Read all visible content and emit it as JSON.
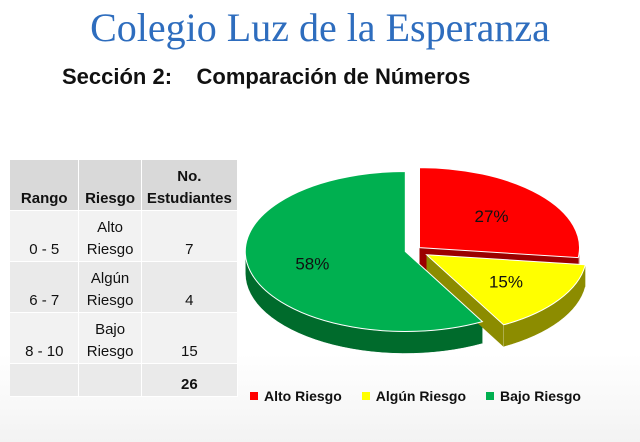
{
  "header": {
    "title": "Colegio Luz de la Esperanza",
    "subtitle": "Sección 2:    Comparación de Números"
  },
  "table": {
    "headers": {
      "rango": "Rango",
      "riesgo": "Riesgo",
      "no_line1": "No.",
      "no_line2": "Estudiantes"
    },
    "rows": [
      {
        "rango": "0  -  5",
        "riesgo_line1": "Alto",
        "riesgo_line2": "Riesgo",
        "count": "7"
      },
      {
        "rango": "6  -  7",
        "riesgo_line1": "Algún",
        "riesgo_line2": "Riesgo",
        "count": "4"
      },
      {
        "rango": "8  -  10",
        "riesgo_line1": "Bajo",
        "riesgo_line2": "Riesgo",
        "count": "15"
      }
    ],
    "total": "26"
  },
  "chart_data": {
    "type": "pie",
    "categories": [
      "Alto Riesgo",
      "Algún Riesgo",
      "Bajo Riesgo"
    ],
    "values": [
      27,
      15,
      58
    ],
    "data_labels": [
      "27%",
      "15%",
      "58%"
    ],
    "colors": [
      "#ff0000",
      "#ffff00",
      "#00b050"
    ],
    "side_colors": [
      "#9b0000",
      "#8c8c00",
      "#006b2c"
    ],
    "legend_position": "bottom"
  }
}
